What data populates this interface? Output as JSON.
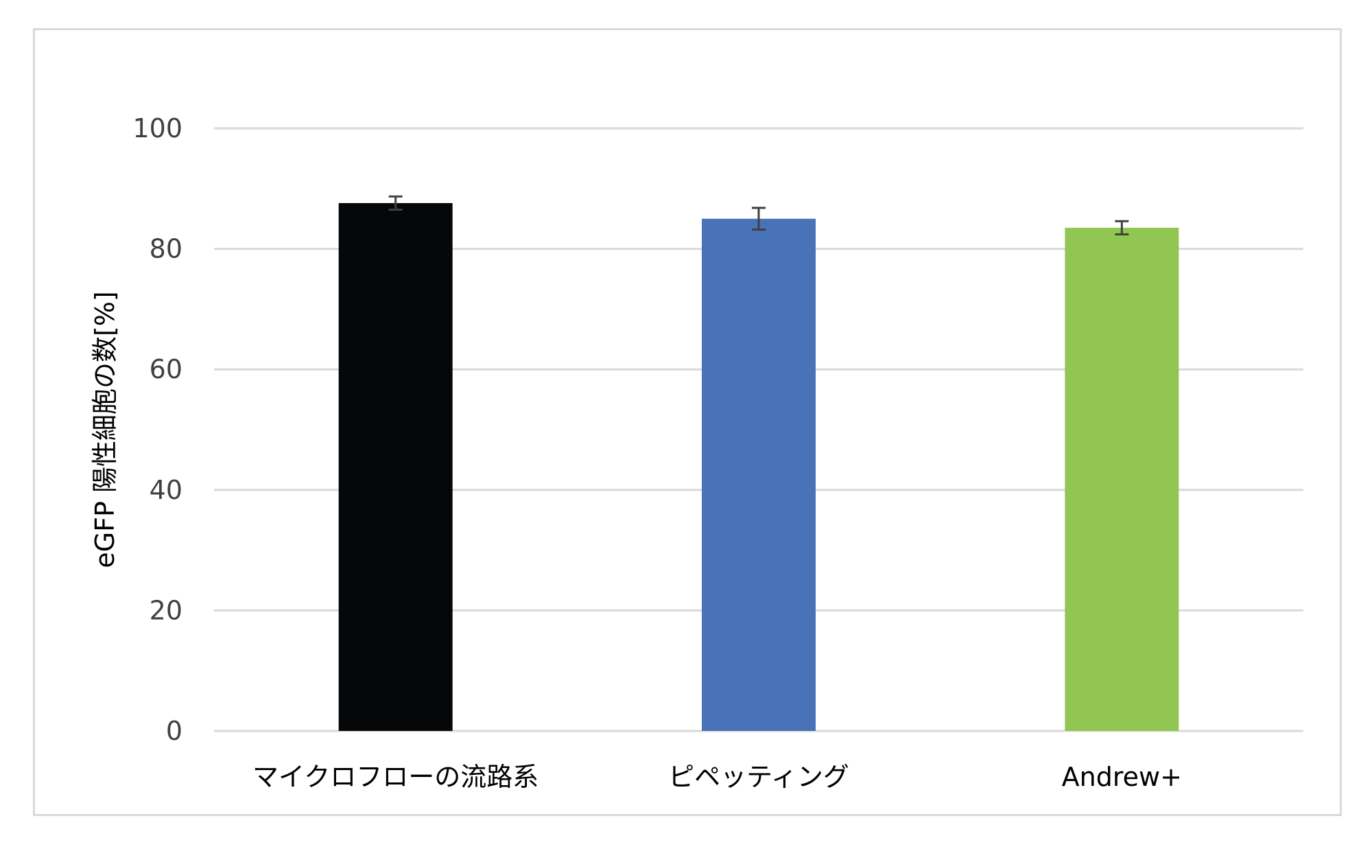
{
  "chart_data": {
    "type": "bar",
    "title": "",
    "xlabel": "",
    "ylabel": "eGFP 陽性細胞の数[%]",
    "ylim": [
      0,
      100
    ],
    "yticks": [
      0,
      20,
      40,
      60,
      80,
      100
    ],
    "grid": true,
    "legend": "none",
    "categories": [
      "マイクロフローの流路系",
      "ピペッティング",
      "Andrew+"
    ],
    "values": [
      87.6,
      85.0,
      83.5
    ],
    "error": [
      1.1,
      1.8,
      1.1
    ],
    "colors": [
      "#050709",
      "#4a72b8",
      "#92c653"
    ],
    "error_color": "#404040",
    "grid_color": "#d9d9d9"
  }
}
